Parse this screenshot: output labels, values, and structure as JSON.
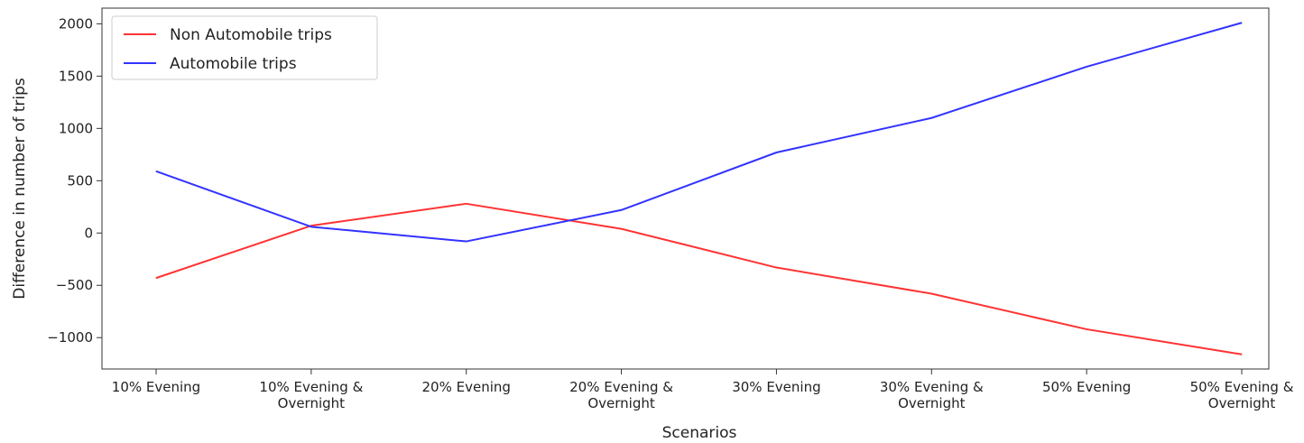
{
  "chart_data": {
    "type": "line",
    "categories": [
      "10% Evening",
      "10% Evening &\nOvernight",
      "20% Evening",
      "20% Evening &\nOvernight",
      "30% Evening",
      "30% Evening &\nOvernight",
      "50% Evening",
      "50% Evening &\nOvernight"
    ],
    "series": [
      {
        "name": "Non Automobile trips",
        "color": "#ff3333",
        "values": [
          -430,
          70,
          280,
          40,
          -330,
          -580,
          -920,
          -1160
        ]
      },
      {
        "name": "Automobile trips",
        "color": "#3333ff",
        "values": [
          590,
          60,
          -80,
          220,
          770,
          1100,
          1590,
          2010
        ]
      }
    ],
    "title": "",
    "xlabel": "Scenarios",
    "ylabel": "Difference in number of trips",
    "ylim": [
      -1300,
      2150
    ],
    "yticks": [
      -1000,
      -500,
      0,
      500,
      1000,
      1500,
      2000
    ],
    "yticklabels": [
      "−1000",
      "−500",
      "0",
      "500",
      "1000",
      "1500",
      "2000"
    ],
    "grid": false,
    "legend_position": "upper-left"
  }
}
